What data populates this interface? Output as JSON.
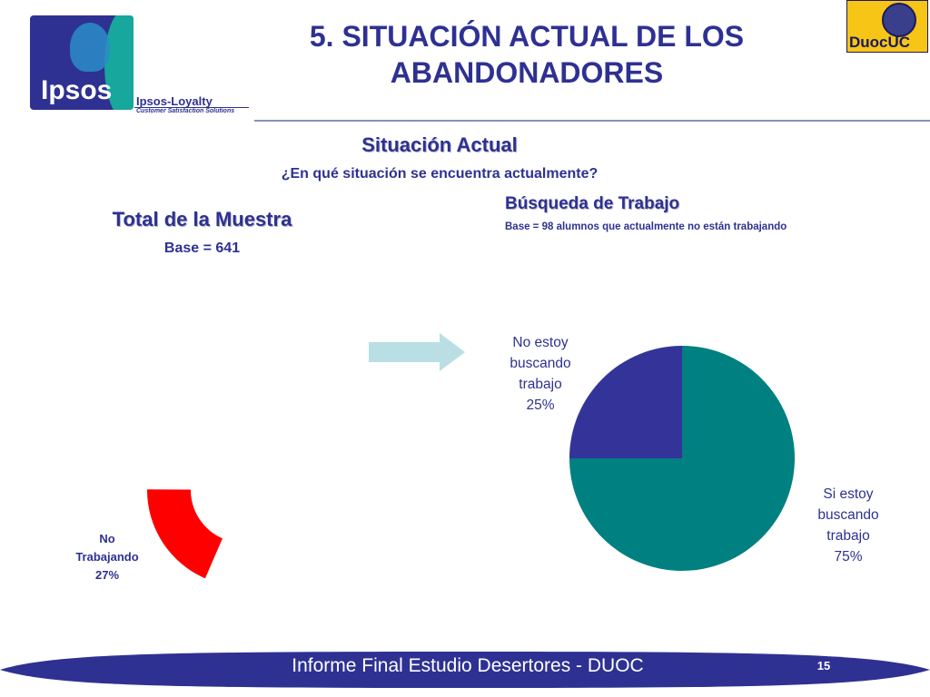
{
  "header": {
    "title": "5. SITUACIÓN ACTUAL DE LOS ABANDONADORES",
    "logo_ipsos": "Ipsos",
    "logo_ipsos_loyalty": "Ipsos-Loyalty",
    "logo_ipsos_sub": "Customer Satisfaction Solutions",
    "logo_duoc": "DuocUC"
  },
  "section": {
    "title": "Situación Actual",
    "question": "¿En qué situación se encuentra actualmente?"
  },
  "left_panel": {
    "title": "Total de la Muestra",
    "base": "Base = 641"
  },
  "right_panel": {
    "title": "Búsqueda de Trabajo",
    "base": "Base = 98 alumnos que actualmente no están trabajando"
  },
  "chart_data": [
    {
      "type": "pie",
      "title": "Total de la Muestra",
      "subtitle": "Base = 641",
      "slices": [
        {
          "label": "No Trabajando",
          "value": 27,
          "color": "#ff0000"
        }
      ]
    },
    {
      "type": "pie",
      "title": "Búsqueda de Trabajo",
      "subtitle": "Base = 98 alumnos que actualmente no están trabajando",
      "slices": [
        {
          "label": "No estoy buscando trabajo",
          "value": 25,
          "color": "#333399"
        },
        {
          "label": "Si estoy buscando trabajo",
          "value": 75,
          "color": "#008080"
        }
      ]
    }
  ],
  "labels": {
    "no_trabajando_line1": "No",
    "no_trabajando_line2": "Trabajando",
    "no_trabajando_pct": "27%",
    "no_buscando_line1": "No estoy",
    "no_buscando_line2": "buscando",
    "no_buscando_line3": "trabajo",
    "no_buscando_pct": "25%",
    "si_buscando_line1": "Si estoy",
    "si_buscando_line2": "buscando",
    "si_buscando_line3": "trabajo",
    "si_buscando_pct": "75%"
  },
  "footer": {
    "text": "Informe Final Estudio Desertores - DUOC",
    "page": "15"
  },
  "colors": {
    "brand_blue": "#2e3192",
    "teal": "#008080",
    "red": "#ff0000",
    "arrow": "#b9dfe4",
    "footer": "#2e3192"
  }
}
